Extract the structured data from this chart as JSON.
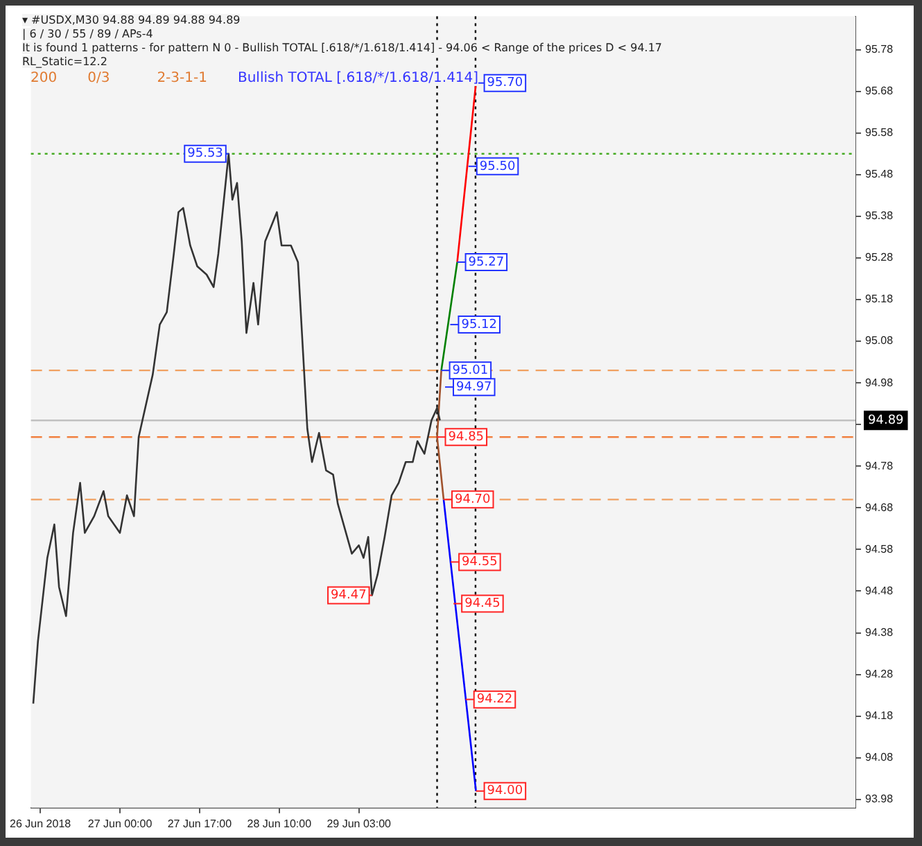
{
  "chart_data": {
    "type": "line",
    "title": "▾ #USDX,M30  94.88 94.89 94.88 94.89",
    "subtitle": "| 6 / 30 / 55 / 89 / APs-4",
    "annotations": [
      "It is found 1 patterns  -  for pattern N 0 - Bullish TOTAL [.618/*/1.618/1.414] - 94.06 < Range of the prices D < 94.17",
      "RL_Static=12.2",
      "200",
      "0/3",
      "2-3-1-1",
      "Bullish TOTAL [.618/*/1.618/1.414]",
      {
        "text": "95.53",
        "x": "2018-06-27T23:12",
        "y": 95.53
      },
      {
        "text": "94.47",
        "x": "2018-06-29T05:48",
        "y": 94.47
      },
      {
        "text": "95.70",
        "x": "2018-06-30T04:00",
        "y": 95.7
      },
      {
        "text": "95.50",
        "x": "2018-06-30T02:24",
        "y": 95.5
      },
      {
        "text": "95.27",
        "x": "2018-06-30T00:00",
        "y": 95.27
      },
      {
        "text": "95.12",
        "x": "2018-06-29T22:30",
        "y": 95.12
      },
      {
        "text": "95.01",
        "x": "2018-06-29T20:36",
        "y": 95.01
      },
      {
        "text": "94.97",
        "x": "2018-06-29T21:24",
        "y": 94.97
      },
      {
        "text": "94.85",
        "x": "2018-06-29T19:42",
        "y": 94.85
      },
      {
        "text": "94.70",
        "x": "2018-06-29T21:06",
        "y": 94.7
      },
      {
        "text": "94.55",
        "x": "2018-06-29T22:36",
        "y": 94.55
      },
      {
        "text": "94.45",
        "x": "2018-06-29T23:12",
        "y": 94.45
      },
      {
        "text": "94.22",
        "x": "2018-06-30T01:48",
        "y": 94.22
      },
      {
        "text": "94.00",
        "x": "2018-06-30T04:00",
        "y": 94.0
      }
    ],
    "xlim": [
      "2018-06-26T05:00",
      "2018-07-03T13:00"
    ],
    "xticks": [
      {
        "value": "2018-06-26T07:00",
        "label": "26 Jun 2018"
      },
      {
        "value": "2018-06-27T00:00",
        "label": "27 Jun 00:00"
      },
      {
        "value": "2018-06-27T17:00",
        "label": "27 Jun 17:00"
      },
      {
        "value": "2018-06-28T10:00",
        "label": "28 Jun 10:00"
      },
      {
        "value": "2018-06-29T03:00",
        "label": "29 Jun 03:00"
      }
    ],
    "ylim": [
      93.96,
      95.86
    ],
    "yticks": [
      93.98,
      94.08,
      94.18,
      94.28,
      94.38,
      94.48,
      94.58,
      94.68,
      94.78,
      {
        "value": 94.88,
        "label": null
      },
      94.98,
      95.08,
      95.18,
      95.28,
      95.38,
      95.48,
      95.58,
      95.68,
      95.78
    ],
    "grid": false,
    "legend": false,
    "marker": "none",
    "series": [
      {
        "color": "#333333",
        "x": [
          "2018-06-26T05:30",
          "2018-06-26T06:30",
          "2018-06-26T08:30",
          "2018-06-26T10:00",
          "2018-06-26T11:00",
          "2018-06-26T12:30",
          "2018-06-26T14:00",
          "2018-06-26T15:30",
          "2018-06-26T16:30",
          "2018-06-26T18:30",
          "2018-06-26T20:30",
          "2018-06-26T21:30",
          "2018-06-27T00:00",
          "2018-06-27T01:30",
          "2018-06-27T03:00",
          "2018-06-27T04:00",
          "2018-06-27T07:00",
          "2018-06-27T08:30",
          "2018-06-27T10:00",
          "2018-06-27T11:30",
          "2018-06-27T12:30",
          "2018-06-27T13:30",
          "2018-06-27T15:00",
          "2018-06-27T16:30",
          "2018-06-27T18:30",
          "2018-06-27T20:00",
          "2018-06-27T21:00",
          "2018-06-27T23:12",
          "2018-06-28T00:00",
          "2018-06-28T01:00",
          "2018-06-28T02:00",
          "2018-06-28T03:00",
          "2018-06-28T04:30",
          "2018-06-28T05:30",
          "2018-06-28T07:00",
          "2018-06-28T09:30",
          "2018-06-28T10:30",
          "2018-06-28T12:30",
          "2018-06-28T14:00",
          "2018-06-28T16:00",
          "2018-06-28T17:00",
          "2018-06-28T18:30",
          "2018-06-28T20:00",
          "2018-06-28T21:30",
          "2018-06-28T22:30",
          "2018-06-29T01:30",
          "2018-06-29T03:00",
          "2018-06-29T04:00",
          "2018-06-29T05:00",
          "2018-06-29T05:48",
          "2018-06-29T07:00",
          "2018-06-29T08:30",
          "2018-06-29T10:00",
          "2018-06-29T11:30",
          "2018-06-29T13:00",
          "2018-06-29T14:30",
          "2018-06-29T15:30",
          "2018-06-29T17:00",
          "2018-06-29T18:30",
          "2018-06-29T19:42",
          "2018-06-29T20:18"
        ],
        "values": [
          94.21,
          94.36,
          94.56,
          94.64,
          94.49,
          94.42,
          94.62,
          94.74,
          94.62,
          94.66,
          94.72,
          94.66,
          94.62,
          94.71,
          94.66,
          94.85,
          95.0,
          95.12,
          95.15,
          95.29,
          95.39,
          95.4,
          95.31,
          95.26,
          95.24,
          95.21,
          95.29,
          95.53,
          95.42,
          95.46,
          95.32,
          95.1,
          95.22,
          95.12,
          95.32,
          95.39,
          95.31,
          95.31,
          95.27,
          94.87,
          94.79,
          94.86,
          94.77,
          94.76,
          94.69,
          94.57,
          94.59,
          94.56,
          94.61,
          94.47,
          94.52,
          94.61,
          94.71,
          94.74,
          94.79,
          94.79,
          94.84,
          94.81,
          94.89,
          94.92,
          94.89
        ]
      },
      {
        "color": "#a0522d",
        "x": [
          "2018-06-29T20:36",
          "2018-06-29T19:42",
          "2018-06-29T21:06"
        ],
        "values": [
          95.01,
          94.85,
          94.7
        ]
      },
      {
        "color": "#008000",
        "x": [
          "2018-06-29T20:36",
          "2018-06-30T00:00"
        ],
        "values": [
          95.01,
          95.27
        ]
      },
      {
        "color": "#ff0000",
        "x": [
          "2018-06-30T00:00",
          "2018-06-30T04:00"
        ],
        "values": [
          95.27,
          95.7
        ]
      },
      {
        "color": "#0000ff",
        "x": [
          "2018-06-29T21:06",
          "2018-06-30T04:00"
        ],
        "values": [
          94.7,
          94.0
        ]
      }
    ],
    "ref_lines": [
      {
        "axis": "y",
        "value": 95.53,
        "color": "#44aa22",
        "line_style": "dotted"
      },
      {
        "axis": "y",
        "value": 95.01,
        "color": "#f0a060",
        "line_style": "dashed"
      },
      {
        "axis": "y",
        "value": 94.85,
        "color": "#f08040",
        "line_style": "dashed"
      },
      {
        "axis": "y",
        "value": 94.7,
        "color": "#f0a060",
        "line_style": "dashed"
      },
      {
        "axis": "y",
        "value": 94.89,
        "color": "#c0c0c0",
        "line_style": "solid",
        "label": "94.89"
      },
      {
        "axis": "x",
        "value": "2018-06-29T19:42",
        "color": "#000000",
        "line_style": "dotted"
      },
      {
        "axis": "x",
        "value": "2018-06-30T03:54",
        "color": "#000000",
        "line_style": "dotted"
      }
    ]
  }
}
